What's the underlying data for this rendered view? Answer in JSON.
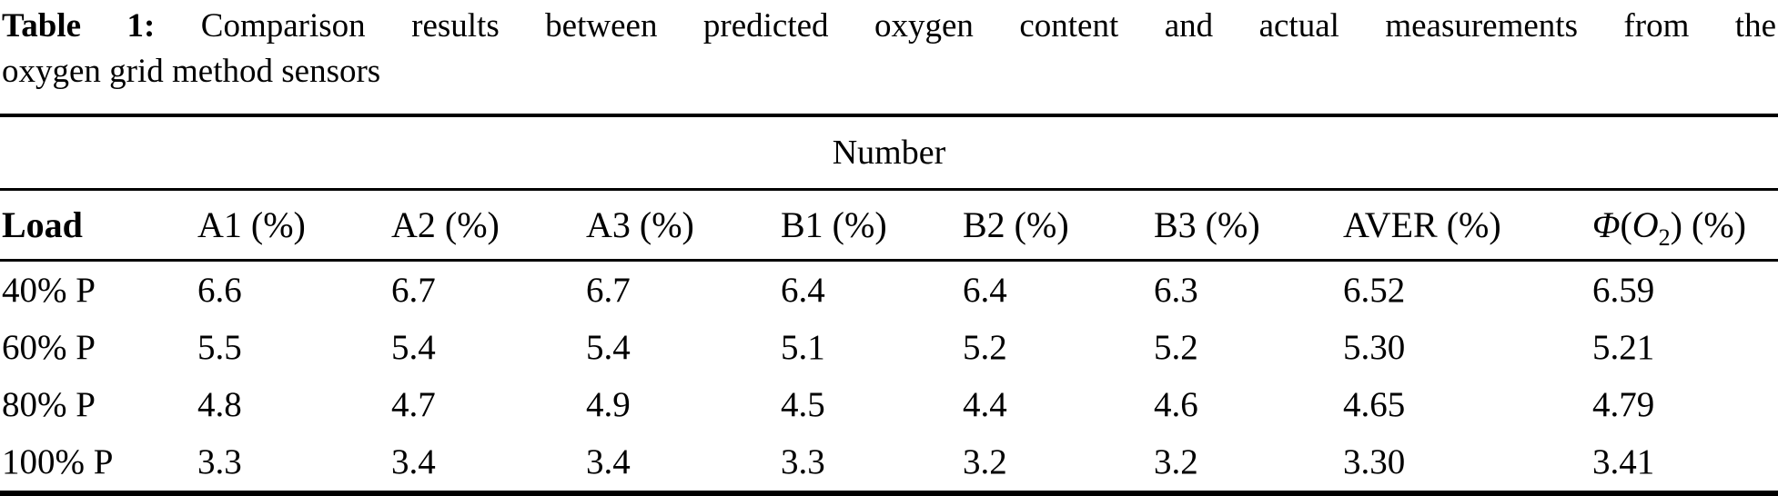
{
  "caption": {
    "label": "Table 1:",
    "line1_rest": "Comparison results between predicted oxygen content and actual measurements from the",
    "line2": "oxygen grid method sensors"
  },
  "table": {
    "group_header": "Number",
    "columns": [
      "Load",
      "A1 (%)",
      "A2 (%)",
      "A3 (%)",
      "B1 (%)",
      "B2 (%)",
      "B3 (%)",
      "AVER (%)"
    ],
    "phi_column": {
      "phi": "Φ",
      "open": "(",
      "o": "O",
      "sub": "2",
      "close": ")",
      "unit": " (%)"
    },
    "rows": [
      [
        "40% P",
        "6.6",
        "6.7",
        "6.7",
        "6.4",
        "6.4",
        "6.3",
        "6.52",
        "6.59"
      ],
      [
        "60% P",
        "5.5",
        "5.4",
        "5.4",
        "5.1",
        "5.2",
        "5.2",
        "5.30",
        "5.21"
      ],
      [
        "80% P",
        "4.8",
        "4.7",
        "4.9",
        "4.5",
        "4.4",
        "4.6",
        "4.65",
        "4.79"
      ],
      [
        "100% P",
        "3.3",
        "3.4",
        "3.4",
        "3.3",
        "3.2",
        "3.2",
        "3.30",
        "3.41"
      ]
    ]
  },
  "colors": {
    "background": "#ffffff",
    "text": "#000000",
    "rule": "#000000"
  }
}
